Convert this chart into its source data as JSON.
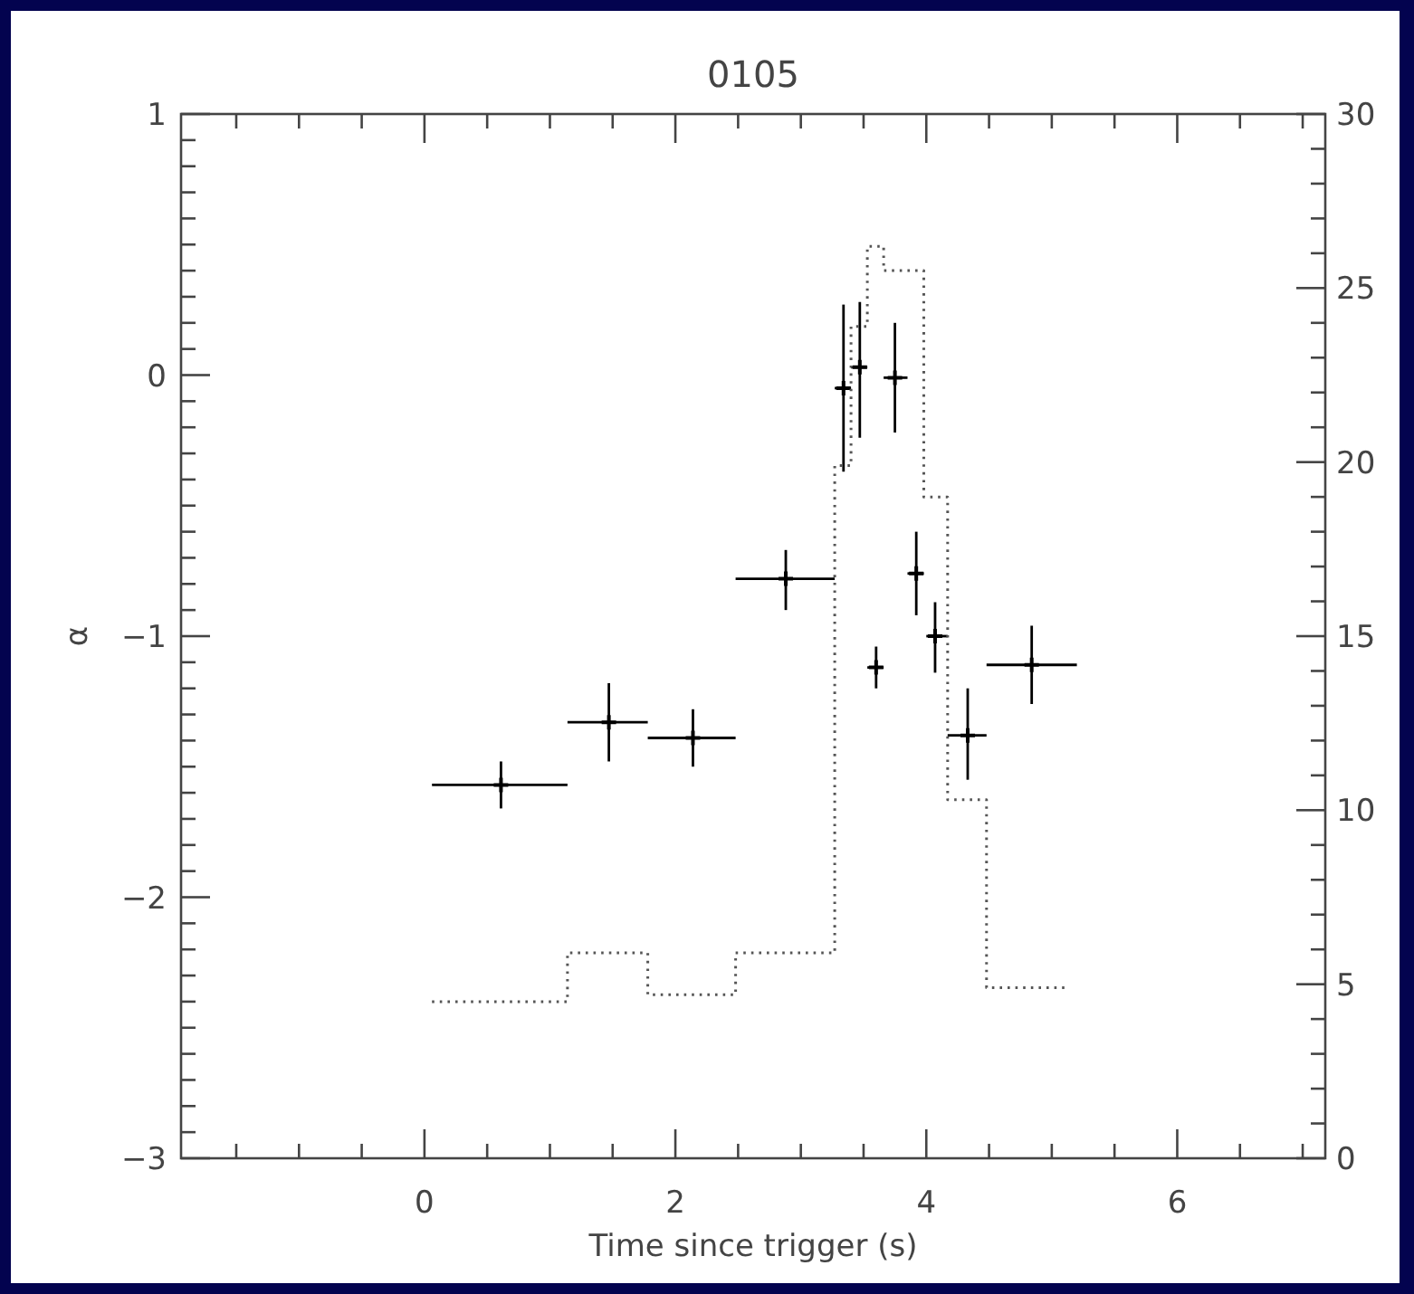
{
  "chart_data": {
    "type": "scatter",
    "title": "0105",
    "xlabel": "Time since trigger (s)",
    "ylabel": "α",
    "marker": "cross",
    "xlim": [
      -1.94,
      7.18
    ],
    "xticks": [
      {
        "value": -1.5,
        "label": null
      },
      {
        "value": -1,
        "label": null
      },
      {
        "value": -0.5,
        "label": null
      },
      0,
      {
        "value": 0.5,
        "label": null
      },
      {
        "value": 1,
        "label": null
      },
      {
        "value": 1.5,
        "label": null
      },
      2,
      {
        "value": 2.5,
        "label": null
      },
      {
        "value": 3,
        "label": null
      },
      {
        "value": 3.5,
        "label": null
      },
      4,
      {
        "value": 4.5,
        "label": null
      },
      {
        "value": 5,
        "label": null
      },
      {
        "value": 5.5,
        "label": null
      },
      6,
      {
        "value": 6.5,
        "label": null
      },
      {
        "value": 7,
        "label": null
      }
    ],
    "ylim": [
      -3,
      1
    ],
    "yticks": [
      -3,
      {
        "value": -2.9,
        "label": null
      },
      {
        "value": -2.8,
        "label": null
      },
      {
        "value": -2.7,
        "label": null
      },
      {
        "value": -2.6,
        "label": null
      },
      {
        "value": -2.5,
        "label": null
      },
      {
        "value": -2.4,
        "label": null
      },
      {
        "value": -2.3,
        "label": null
      },
      {
        "value": -2.2,
        "label": null
      },
      {
        "value": -2.1,
        "label": null
      },
      -2,
      {
        "value": -1.9,
        "label": null
      },
      {
        "value": -1.8,
        "label": null
      },
      {
        "value": -1.7,
        "label": null
      },
      {
        "value": -1.6,
        "label": null
      },
      {
        "value": -1.5,
        "label": null
      },
      {
        "value": -1.4,
        "label": null
      },
      {
        "value": -1.3,
        "label": null
      },
      {
        "value": -1.2,
        "label": null
      },
      {
        "value": -1.1,
        "label": null
      },
      -1,
      {
        "value": -0.9,
        "label": null
      },
      {
        "value": -0.8,
        "label": null
      },
      {
        "value": -0.7,
        "label": null
      },
      {
        "value": -0.6,
        "label": null
      },
      {
        "value": -0.5,
        "label": null
      },
      {
        "value": -0.4,
        "label": null
      },
      {
        "value": -0.3,
        "label": null
      },
      {
        "value": -0.2,
        "label": null
      },
      {
        "value": -0.1,
        "label": null
      },
      0,
      {
        "value": 0.1,
        "label": null
      },
      {
        "value": 0.2,
        "label": null
      },
      {
        "value": 0.3,
        "label": null
      },
      {
        "value": 0.4,
        "label": null
      },
      {
        "value": 0.5,
        "label": null
      },
      {
        "value": 0.6,
        "label": null
      },
      {
        "value": 0.7,
        "label": null
      },
      {
        "value": 0.8,
        "label": null
      },
      {
        "value": 0.9,
        "label": null
      },
      1
    ],
    "y2lim": [
      0,
      30
    ],
    "y2ticks": [
      0,
      {
        "value": 1,
        "label": null
      },
      {
        "value": 2,
        "label": null
      },
      {
        "value": 3,
        "label": null
      },
      {
        "value": 4,
        "label": null
      },
      5,
      {
        "value": 6,
        "label": null
      },
      {
        "value": 7,
        "label": null
      },
      {
        "value": 8,
        "label": null
      },
      {
        "value": 9,
        "label": null
      },
      10,
      {
        "value": 11,
        "label": null
      },
      {
        "value": 12,
        "label": null
      },
      {
        "value": 13,
        "label": null
      },
      {
        "value": 14,
        "label": null
      },
      15,
      {
        "value": 16,
        "label": null
      },
      {
        "value": 17,
        "label": null
      },
      {
        "value": 18,
        "label": null
      },
      {
        "value": 19,
        "label": null
      },
      20,
      {
        "value": 21,
        "label": null
      },
      {
        "value": 22,
        "label": null
      },
      {
        "value": 23,
        "label": null
      },
      {
        "value": 24,
        "label": null
      },
      25,
      {
        "value": 26,
        "label": null
      },
      {
        "value": 27,
        "label": null
      },
      {
        "value": 28,
        "label": null
      },
      {
        "value": 29,
        "label": null
      },
      30
    ],
    "series": [
      {
        "color": "#000000",
        "x": [
          0.61,
          1.47,
          2.14,
          2.88,
          3.34,
          3.47,
          3.6,
          3.75,
          3.92,
          4.07,
          4.33,
          4.84
        ],
        "values": [
          -1.57,
          -1.33,
          -1.39,
          -0.78,
          -0.05,
          0.03,
          -1.12,
          -0.01,
          -0.76,
          -1.0,
          -1.38,
          -1.11
        ],
        "errors": [
          [
            -1.66,
            -1.48
          ],
          [
            -1.48,
            -1.18
          ],
          [
            -1.5,
            -1.28
          ],
          [
            -0.9,
            -0.67
          ],
          [
            -0.37,
            0.27
          ],
          [
            -0.24,
            0.28
          ],
          [
            -1.2,
            -1.04
          ],
          [
            -0.22,
            0.2
          ],
          [
            -0.92,
            -0.6
          ],
          [
            -1.14,
            -0.87
          ],
          [
            -1.55,
            -1.2
          ],
          [
            -1.26,
            -0.96
          ]
        ],
        "xerrors": [
          [
            0.06,
            1.14
          ],
          [
            1.14,
            1.78
          ],
          [
            1.78,
            2.48
          ],
          [
            2.48,
            3.27
          ],
          [
            3.27,
            3.4
          ],
          [
            3.4,
            3.53
          ],
          [
            3.53,
            3.66
          ],
          [
            3.66,
            3.85
          ],
          [
            3.85,
            3.98
          ],
          [
            4.0,
            4.17
          ],
          [
            4.17,
            4.48
          ],
          [
            4.48,
            5.2
          ]
        ]
      },
      {
        "type": "histogram",
        "axis": "y2",
        "color": "#555555",
        "line_style": "dotted",
        "bins": [
          0.06,
          1.14,
          1.78,
          2.48,
          3.27,
          3.4,
          3.53,
          3.66,
          3.98,
          4.17,
          4.48,
          5.13
        ],
        "values": [
          4.5,
          5.9,
          4.7,
          5.9,
          19.9,
          23.9,
          26.2,
          25.5,
          19.0,
          10.3,
          4.9
        ]
      }
    ]
  }
}
